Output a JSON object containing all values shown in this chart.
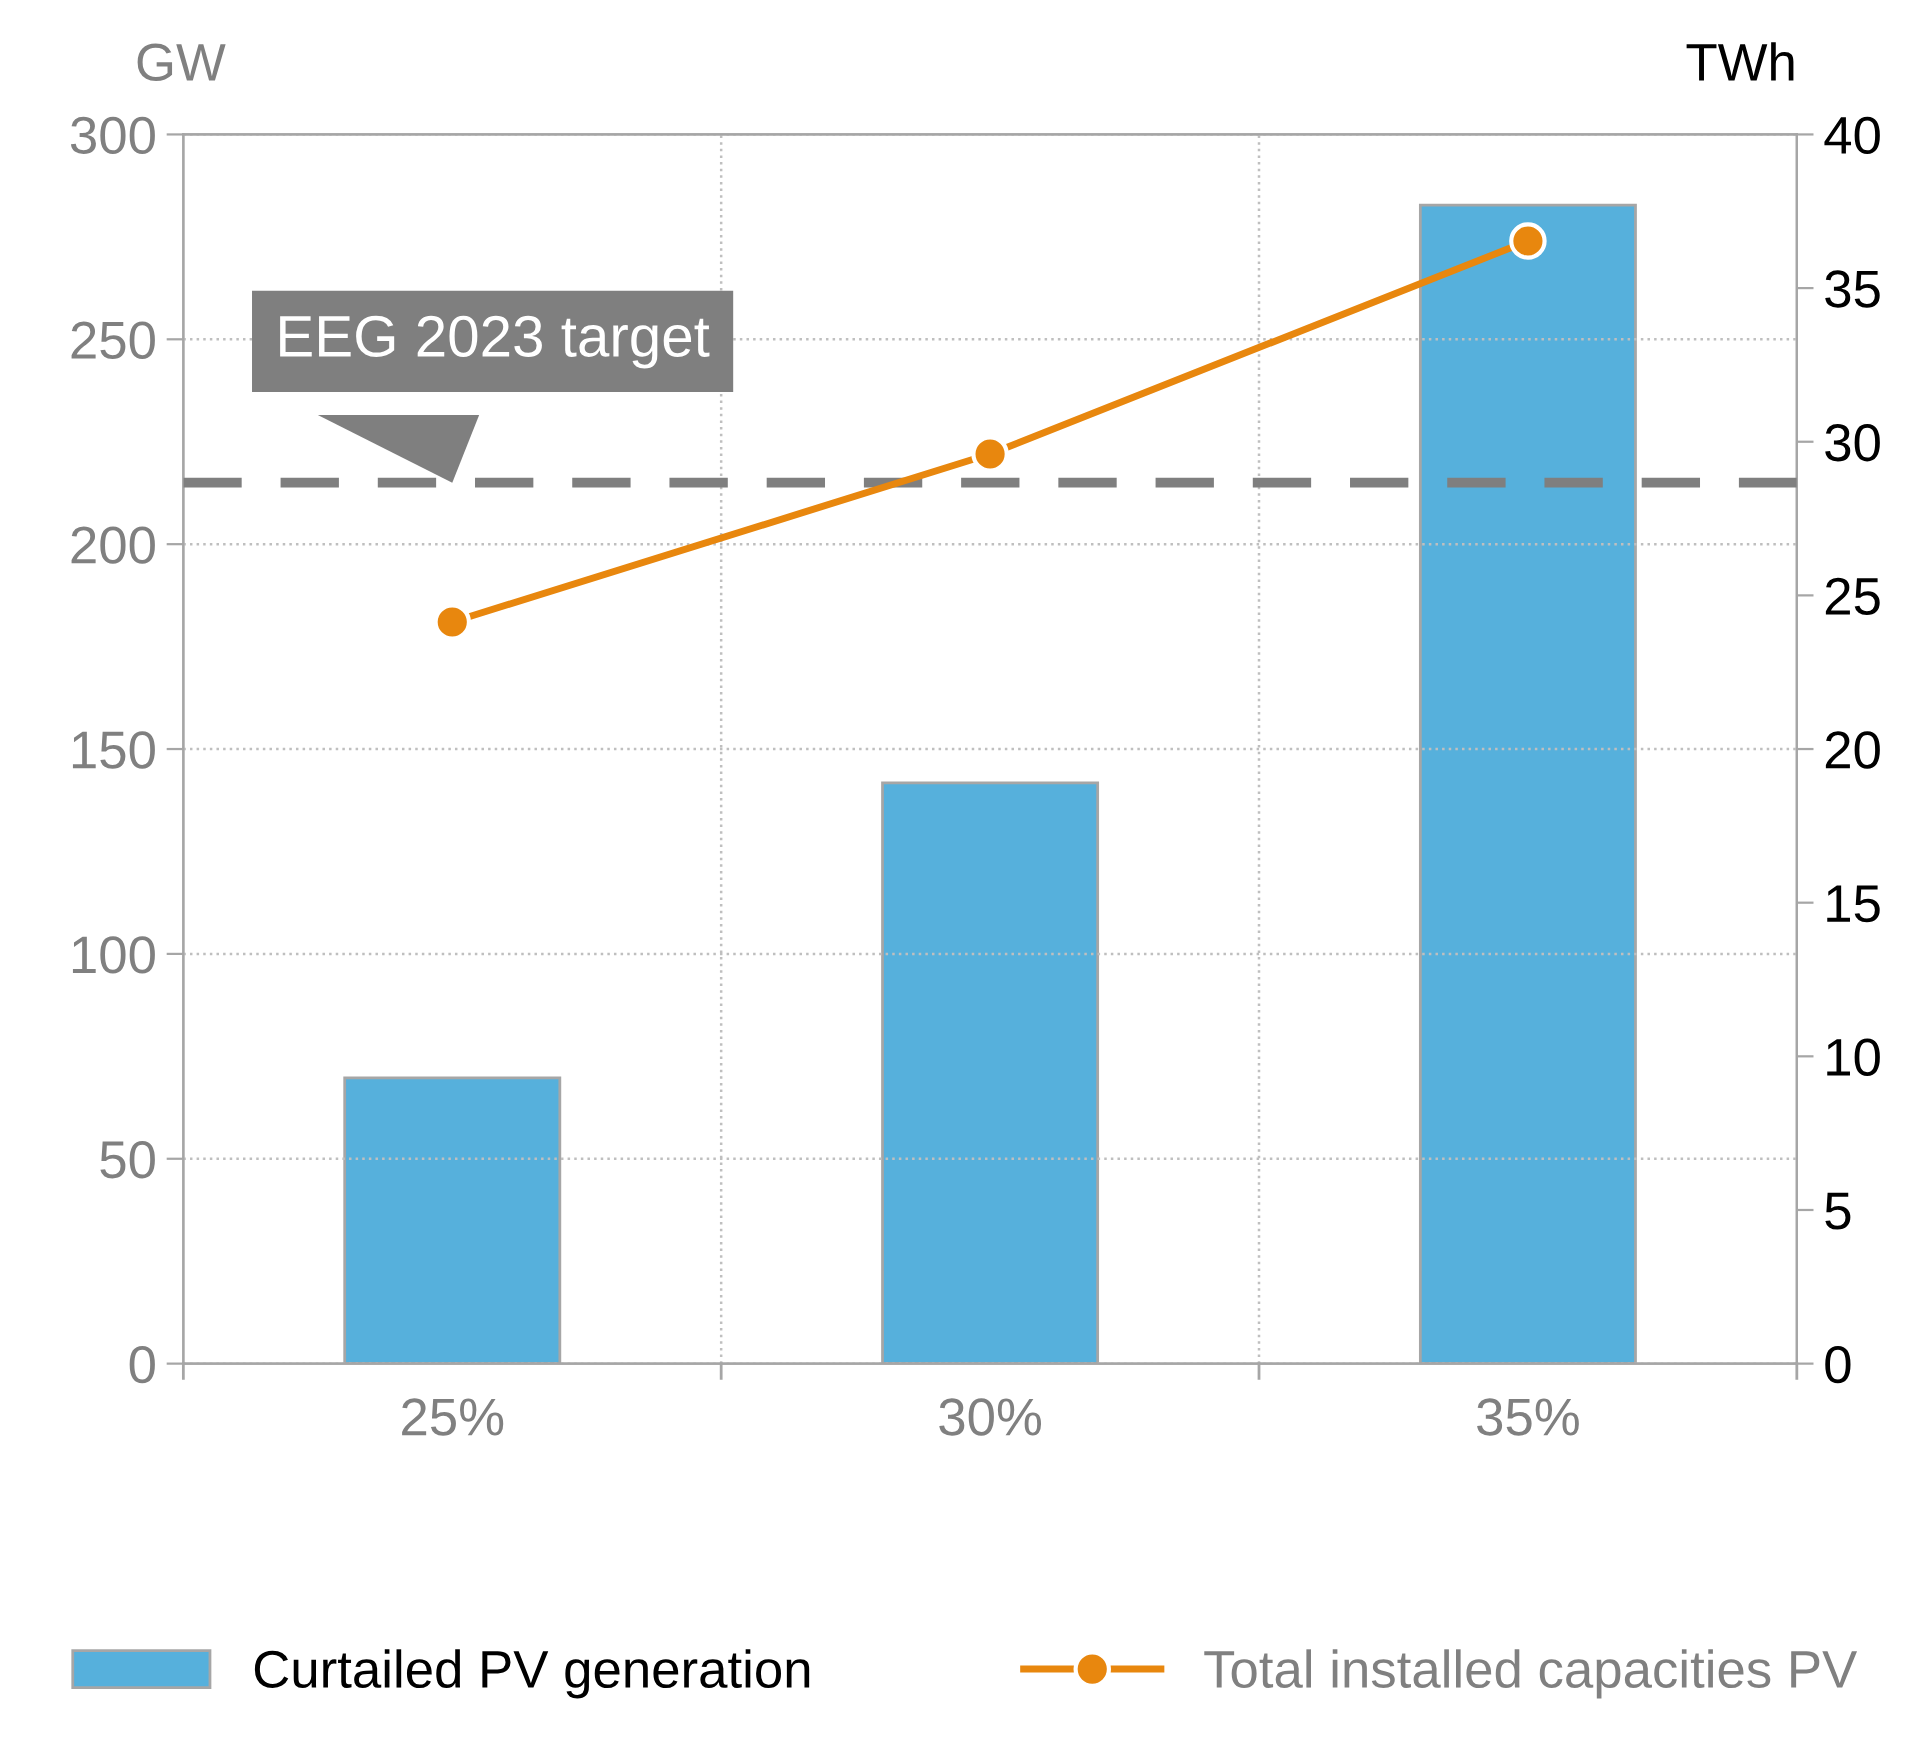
{
  "chart_data": {
    "type": "bar",
    "categories": [
      "25%",
      "30%",
      "35%"
    ],
    "ylabel": "GW",
    "y2label": "TWh",
    "ylim": [
      0,
      300
    ],
    "yticks": [
      0,
      50,
      100,
      150,
      200,
      250,
      300
    ],
    "y2lim": [
      0,
      40
    ],
    "y2ticks": [
      0,
      5,
      10,
      15,
      20,
      25,
      30,
      35,
      40
    ],
    "series": [
      {
        "name": "Curtailed PV generation",
        "axis": "y2",
        "color": "#56b0dc",
        "values": [
          9.3,
          18.9,
          37.7
        ]
      },
      {
        "name": "Total installed capacities PV",
        "type": "line",
        "axis": "y",
        "color": "#e8870e",
        "values": [
          181,
          222,
          274
        ],
        "marker": "circle"
      }
    ],
    "ref_lines": [
      {
        "axis": "y",
        "value": 215,
        "label": "EEG 2023 target",
        "color": "#7f7f7f",
        "line_style": "dashed"
      }
    ],
    "grid": true,
    "legend": "bottom"
  }
}
